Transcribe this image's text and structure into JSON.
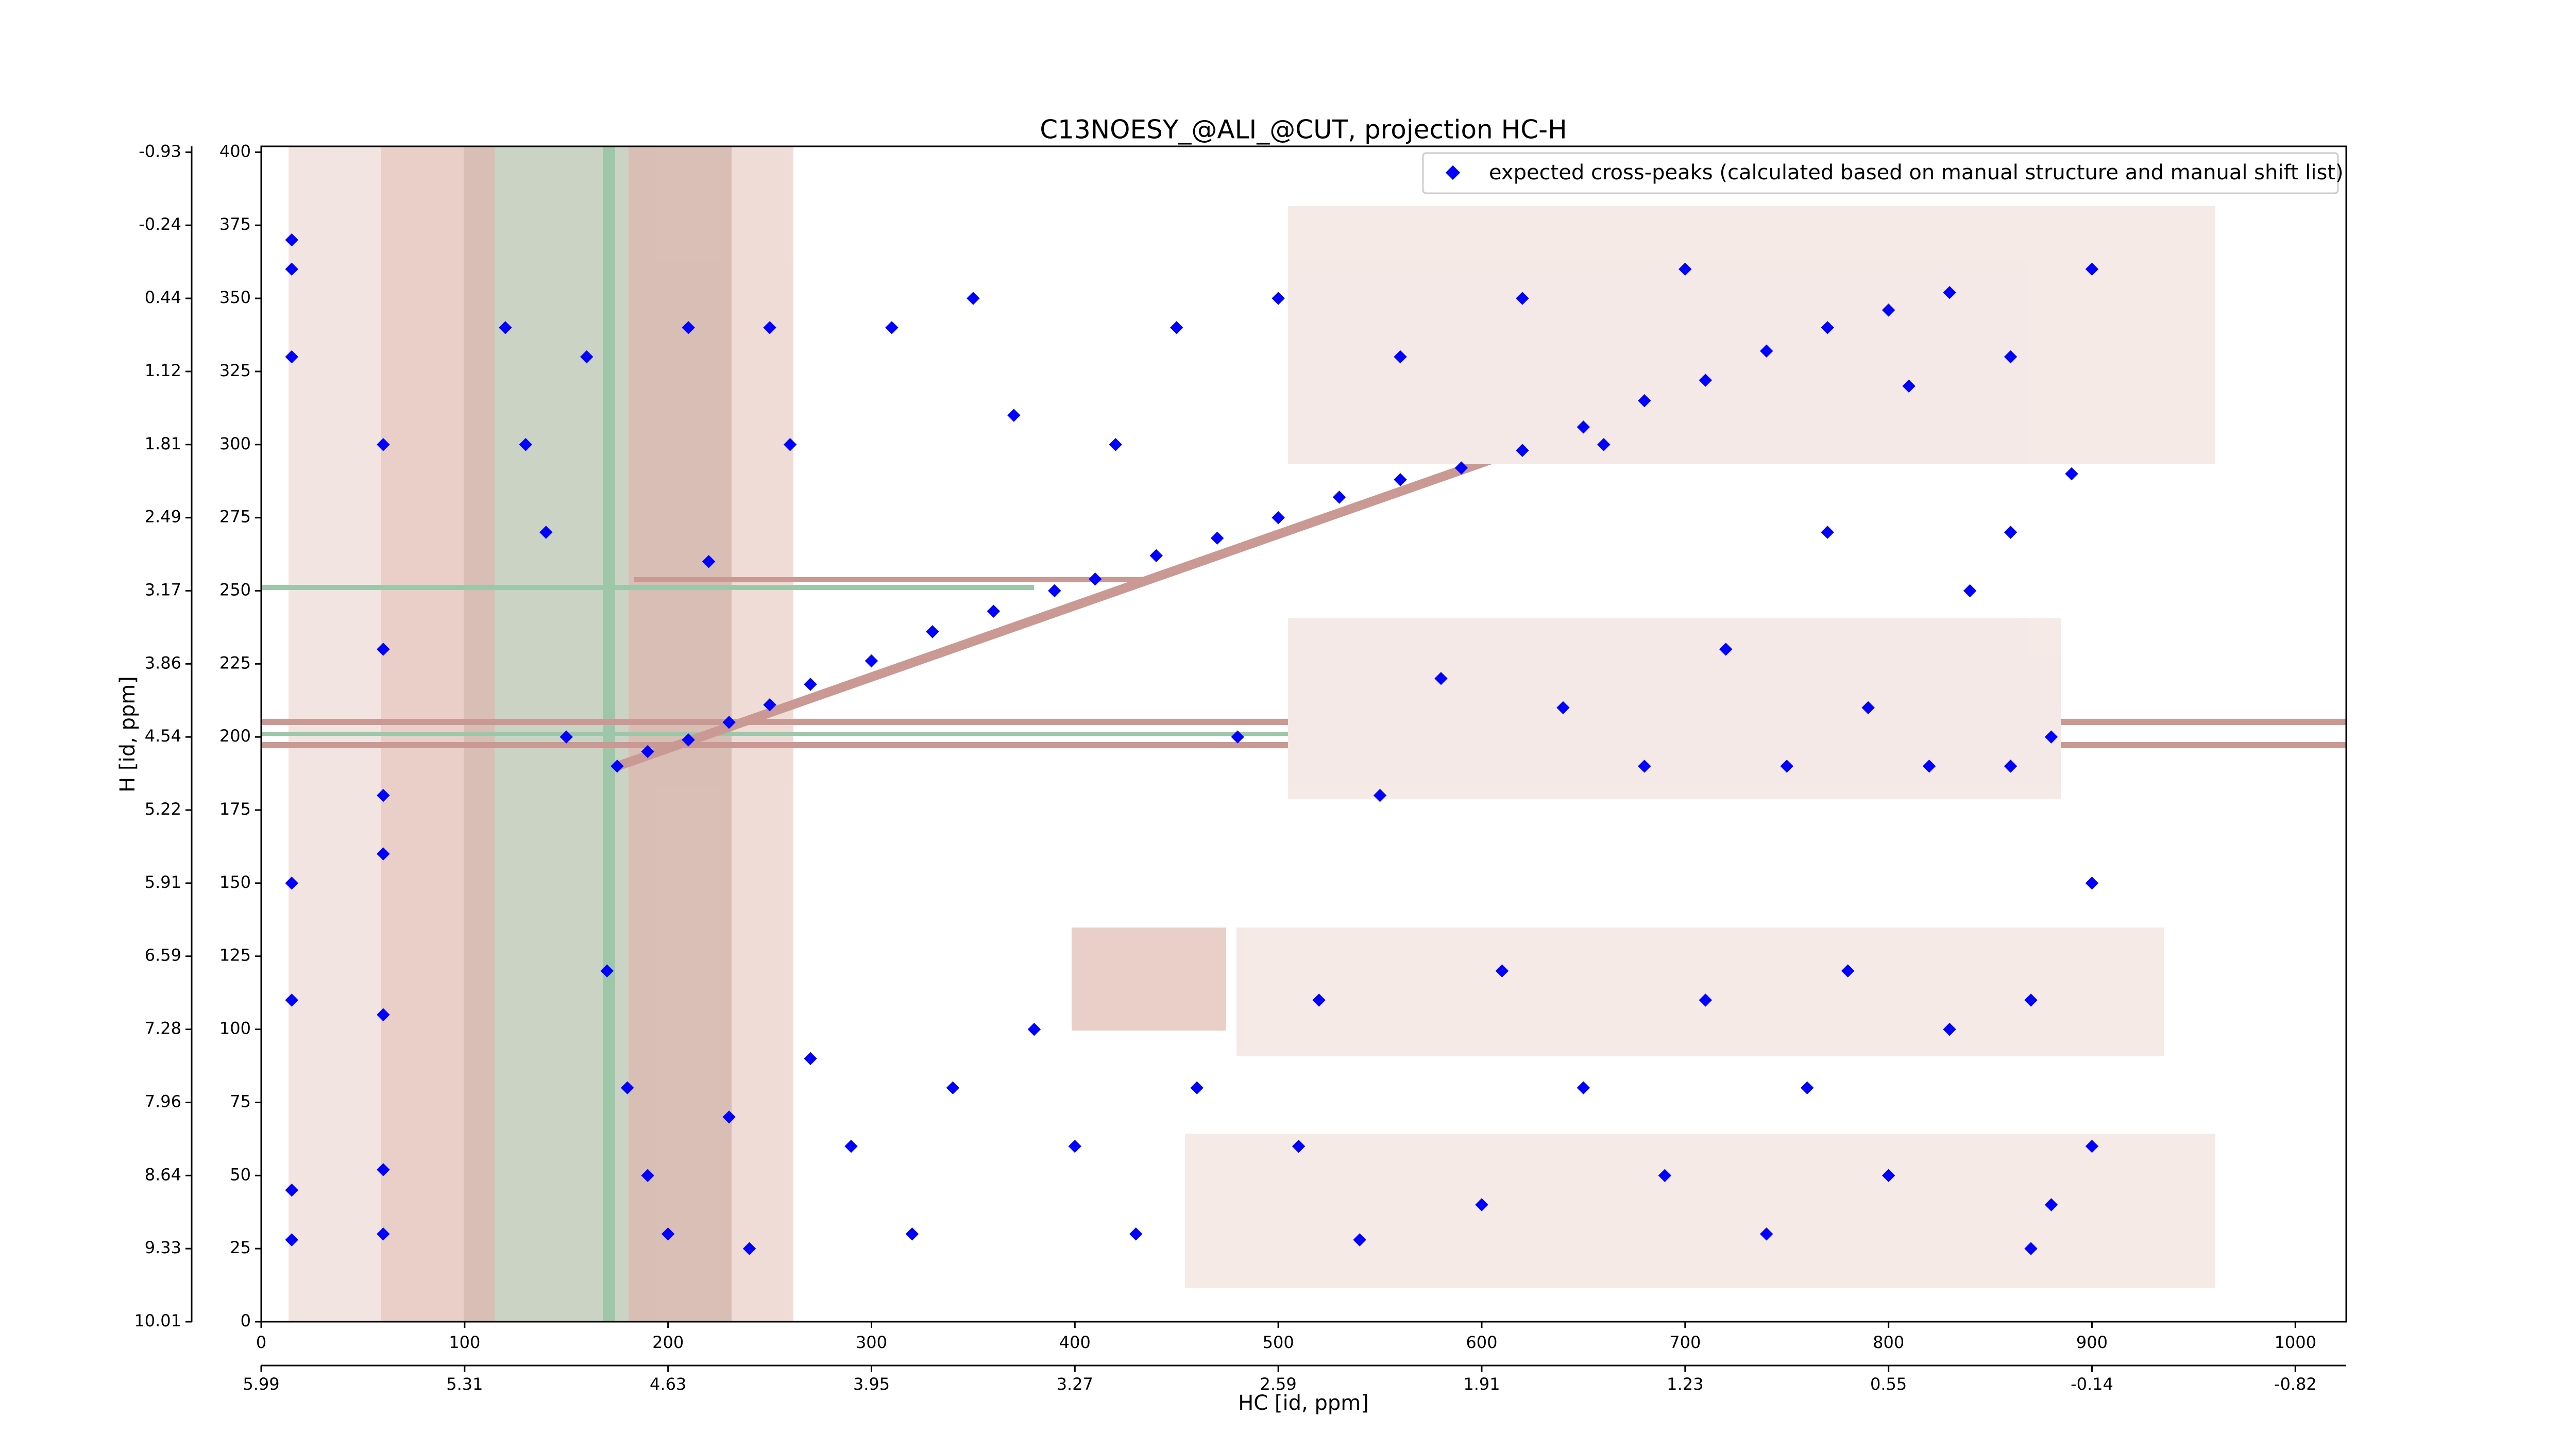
{
  "chart_data": {
    "type": "scatter",
    "title": "C13NOESY_@ALI_@CUT, projection HC-H",
    "x_label": "HC [id, ppm]",
    "y_label": "H [id, ppm]",
    "xlim": [
      0,
      1025
    ],
    "ylim": [
      0,
      402
    ],
    "xticks": [
      0,
      100,
      200,
      300,
      400,
      500,
      600,
      700,
      800,
      900,
      1000
    ],
    "yticks": [
      0,
      25,
      50,
      75,
      100,
      125,
      150,
      175,
      200,
      225,
      250,
      275,
      300,
      325,
      350,
      375,
      400
    ],
    "x2ticks": [
      {
        "value": 0,
        "label": "5.99"
      },
      {
        "value": 100,
        "label": "5.31"
      },
      {
        "value": 200,
        "label": "4.63"
      },
      {
        "value": 300,
        "label": "3.95"
      },
      {
        "value": 400,
        "label": "3.27"
      },
      {
        "value": 500,
        "label": "2.59"
      },
      {
        "value": 600,
        "label": "1.91"
      },
      {
        "value": 700,
        "label": "1.23"
      },
      {
        "value": 800,
        "label": "0.55"
      },
      {
        "value": 900,
        "label": "-0.14"
      },
      {
        "value": 1000,
        "label": "-0.82"
      }
    ],
    "y2ticks": [
      {
        "value": 0,
        "label": "10.01"
      },
      {
        "value": 25,
        "label": "9.33"
      },
      {
        "value": 50,
        "label": "8.64"
      },
      {
        "value": 75,
        "label": "7.96"
      },
      {
        "value": 100,
        "label": "7.28"
      },
      {
        "value": 125,
        "label": "6.59"
      },
      {
        "value": 150,
        "label": "5.91"
      },
      {
        "value": 175,
        "label": "5.22"
      },
      {
        "value": 200,
        "label": "4.54"
      },
      {
        "value": 225,
        "label": "3.86"
      },
      {
        "value": 250,
        "label": "3.17"
      },
      {
        "value": 275,
        "label": "2.49"
      },
      {
        "value": 300,
        "label": "1.81"
      },
      {
        "value": 325,
        "label": "1.12"
      },
      {
        "value": 350,
        "label": "0.44"
      },
      {
        "value": 375,
        "label": "-0.24"
      },
      {
        "value": 400,
        "label": "-0.93"
      }
    ],
    "legend": "upper right",
    "series": [
      {
        "name": "expected cross-peaks (calculated based on manual structure and manual shift list)",
        "color": "#0000ff",
        "x": [
          175,
          190,
          210,
          230,
          250,
          270,
          300,
          330,
          360,
          390,
          410,
          440,
          470,
          500,
          530,
          560,
          590,
          620,
          650,
          680,
          710,
          740,
          770,
          800,
          830,
          15,
          15,
          15,
          15,
          15,
          15,
          15,
          60,
          60,
          60,
          60,
          60,
          60,
          60,
          120,
          130,
          140,
          150,
          160,
          170,
          180,
          190,
          200,
          210,
          220,
          230,
          240,
          250,
          260,
          270,
          290,
          310,
          320,
          340,
          350,
          370,
          380,
          400,
          420,
          430,
          450,
          460,
          480,
          500,
          510,
          520,
          540,
          550,
          560,
          580,
          600,
          610,
          620,
          640,
          650,
          660,
          680,
          690,
          700,
          710,
          720,
          740,
          750,
          760,
          770,
          780,
          790,
          800,
          810,
          820,
          830,
          840,
          860,
          870,
          870,
          880,
          890,
          900,
          900,
          900,
          880,
          860,
          860
        ],
        "values": [
          190,
          195,
          199,
          205,
          211,
          218,
          226,
          236,
          243,
          250,
          254,
          262,
          268,
          275,
          282,
          288,
          292,
          298,
          306,
          315,
          322,
          332,
          340,
          346,
          352,
          370,
          360,
          330,
          150,
          110,
          45,
          28,
          300,
          230,
          180,
          160,
          105,
          52,
          30,
          340,
          300,
          270,
          200,
          330,
          120,
          80,
          50,
          30,
          340,
          260,
          70,
          25,
          340,
          300,
          90,
          60,
          340,
          30,
          80,
          350,
          310,
          100,
          60,
          300,
          30,
          340,
          80,
          200,
          350,
          60,
          110,
          28,
          180,
          330,
          220,
          40,
          120,
          350,
          210,
          80,
          300,
          190,
          50,
          360,
          110,
          230,
          30,
          190,
          80,
          270,
          120,
          210,
          50,
          320,
          190,
          100,
          250,
          330,
          25,
          110,
          200,
          290,
          150,
          60,
          360,
          40,
          270,
          190
        ]
      }
    ]
  }
}
